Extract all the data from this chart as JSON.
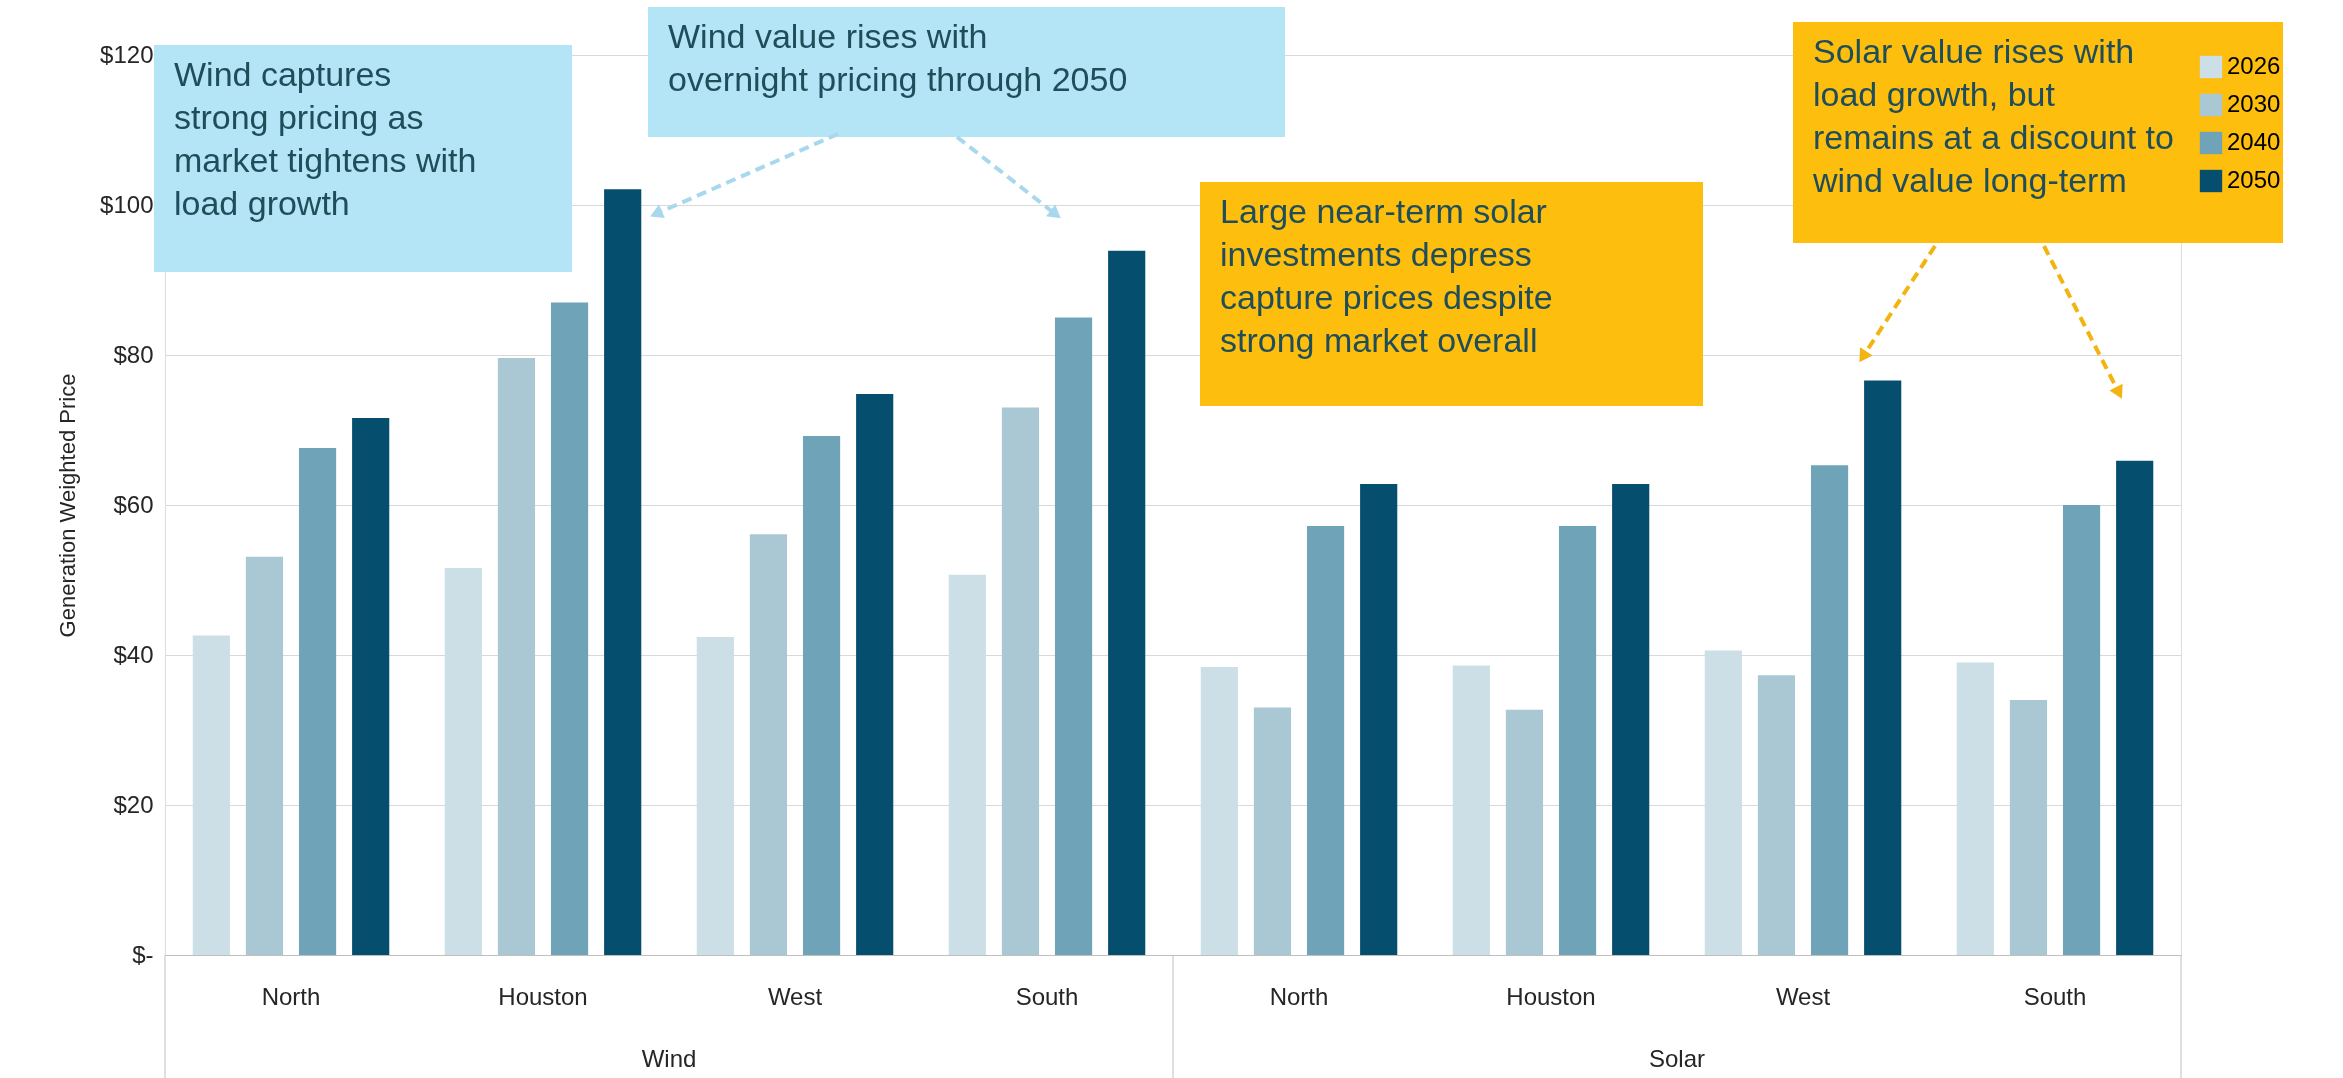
{
  "chart_data": {
    "type": "bar",
    "ylabel": "Generation Weighted Price",
    "categories": [
      "North",
      "Houston",
      "West",
      "South",
      "North",
      "Houston",
      "West",
      "South"
    ],
    "series": [
      {
        "name": "2026",
        "color": "#ccdfe6",
        "values": [
          42.6,
          51.6,
          42.4,
          50.7,
          38.4,
          38.6,
          40.6,
          39.0
        ]
      },
      {
        "name": "2030",
        "color": "#a9c8d3",
        "values": [
          53.1,
          79.6,
          56.1,
          73.0,
          33.0,
          32.7,
          37.3,
          34.0
        ]
      },
      {
        "name": "2040",
        "color": "#6fa3b7",
        "values": [
          67.6,
          87.0,
          69.2,
          85.0,
          57.2,
          57.2,
          65.3,
          60.0
        ]
      },
      {
        "name": "2050",
        "color": "#064e6e",
        "values": [
          71.6,
          102.1,
          74.8,
          93.9,
          62.8,
          62.8,
          76.6,
          65.9
        ]
      }
    ],
    "ylim": [
      0,
      120
    ],
    "yticks": [
      {
        "value": 0,
        "label": "$-"
      },
      {
        "value": 20,
        "label": "$20"
      },
      {
        "value": 40,
        "label": "$40"
      },
      {
        "value": 60,
        "label": "$60"
      },
      {
        "value": 80,
        "label": "$80"
      },
      {
        "value": 100,
        "label": "$100"
      },
      {
        "value": 120,
        "label": "$120"
      }
    ],
    "grid": "y",
    "legend": "right",
    "annotations": [
      "Wind",
      "Solar",
      "Wind captures\nstrong pricing as\nmarket tightens with\nload growth",
      "Wind value rises with\novernight pricing through 2050",
      "Large near-term solar\ninvestments depress\ncapture prices despite\nstrong market overall",
      "Solar value rises with\nload growth, but\nremains at a discount to\nwind value long-term"
    ]
  }
}
